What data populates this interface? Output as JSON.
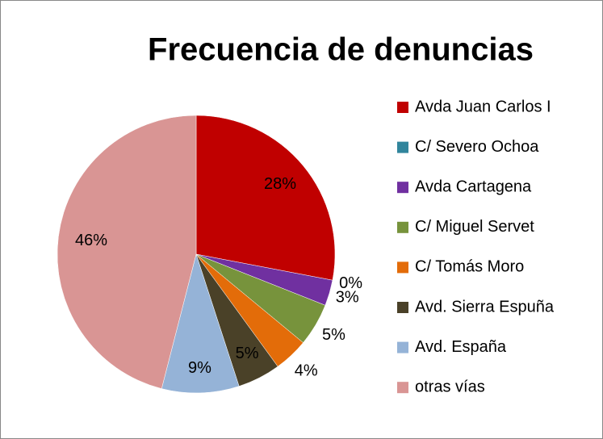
{
  "chart_data": {
    "type": "pie",
    "title": "Frecuencia de denuncias",
    "categories": [
      "Avda Juan Carlos I",
      "C/ Severo Ochoa",
      "Avda Cartagena",
      "C/ Miguel Servet",
      "C/ Tomás Moro",
      "Avd. Sierra Espuña",
      "Avd. España",
      "otras vías"
    ],
    "values": [
      28,
      0,
      3,
      5,
      4,
      5,
      9,
      46
    ],
    "value_labels": [
      "28%",
      "0%",
      "3%",
      "5%",
      "4%",
      "5%",
      "9%",
      "46%"
    ],
    "colors": [
      "#c00000",
      "#31859c",
      "#7030a0",
      "#77933c",
      "#e36c09",
      "#4a4128",
      "#95b3d7",
      "#d99594"
    ],
    "legend": "right"
  }
}
